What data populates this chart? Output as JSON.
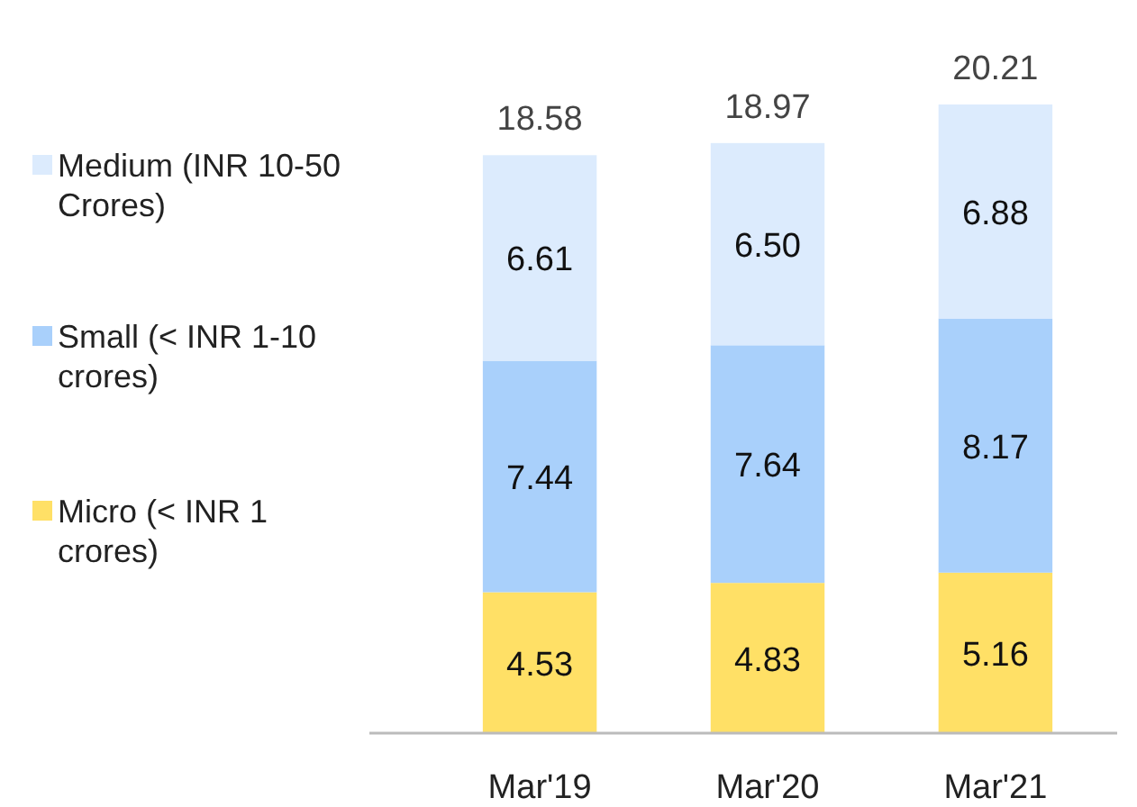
{
  "chart_data": {
    "type": "bar",
    "stacked": true,
    "legend": "left",
    "categories": [
      "Mar'19",
      "Mar'20",
      "Mar'21"
    ],
    "series": [
      {
        "name": "Micro (< INR 1 crores)",
        "color": "#ffe066",
        "values": [
          4.53,
          4.83,
          5.16
        ],
        "value_labels": [
          "4.53",
          "4.83",
          "5.16"
        ]
      },
      {
        "name": "Small (< INR 1-10 crores)",
        "color": "#a9d0fb",
        "values": [
          7.44,
          7.64,
          8.17
        ],
        "value_labels": [
          "7.44",
          "7.64",
          "8.17"
        ]
      },
      {
        "name": "Medium (INR 10-50 Crores)",
        "color": "#dcebfd",
        "values": [
          6.61,
          6.5,
          6.88
        ],
        "value_labels": [
          "6.61",
          "6.50",
          "6.88"
        ]
      }
    ],
    "totals": [
      "18.58",
      "18.97",
      "20.21"
    ]
  }
}
